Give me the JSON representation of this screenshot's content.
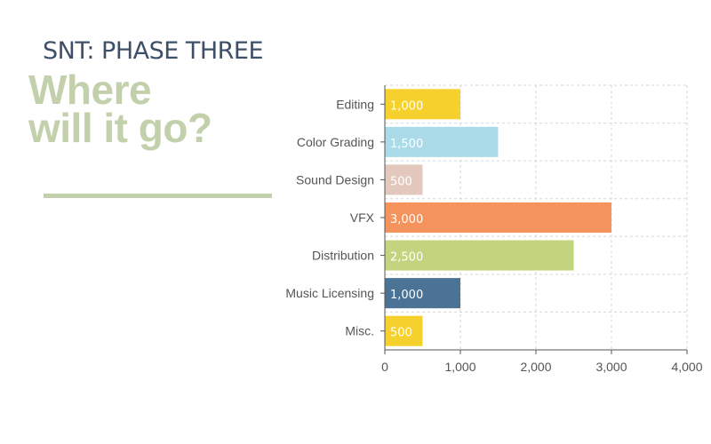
{
  "header": {
    "kicker": "SNT: PHASE THREE",
    "headline_line1": "Where",
    "headline_line2": "will it go?"
  },
  "chart_data": {
    "type": "bar",
    "orientation": "horizontal",
    "categories": [
      "Editing",
      "Color Grading",
      "Sound Design",
      "VFX",
      "Distribution",
      "Music Licensing",
      "Misc."
    ],
    "values": [
      1000,
      1500,
      500,
      3000,
      2500,
      1000,
      500
    ],
    "value_labels": [
      "1,000",
      "1,500",
      "500",
      "3,000",
      "2,500",
      "1,000",
      "500"
    ],
    "colors": [
      "#f6d12d",
      "#abdbe9",
      "#e3c8be",
      "#f5935c",
      "#c3d47f",
      "#4a7396",
      "#f6d12d"
    ],
    "xlim": [
      0,
      4000
    ],
    "xticks": [
      0,
      1000,
      2000,
      3000,
      4000
    ],
    "xtick_labels": [
      "0",
      "1,000",
      "2,000",
      "3,000",
      "4,000"
    ],
    "grid": true,
    "grid_style": "dashed",
    "legend": "none"
  }
}
